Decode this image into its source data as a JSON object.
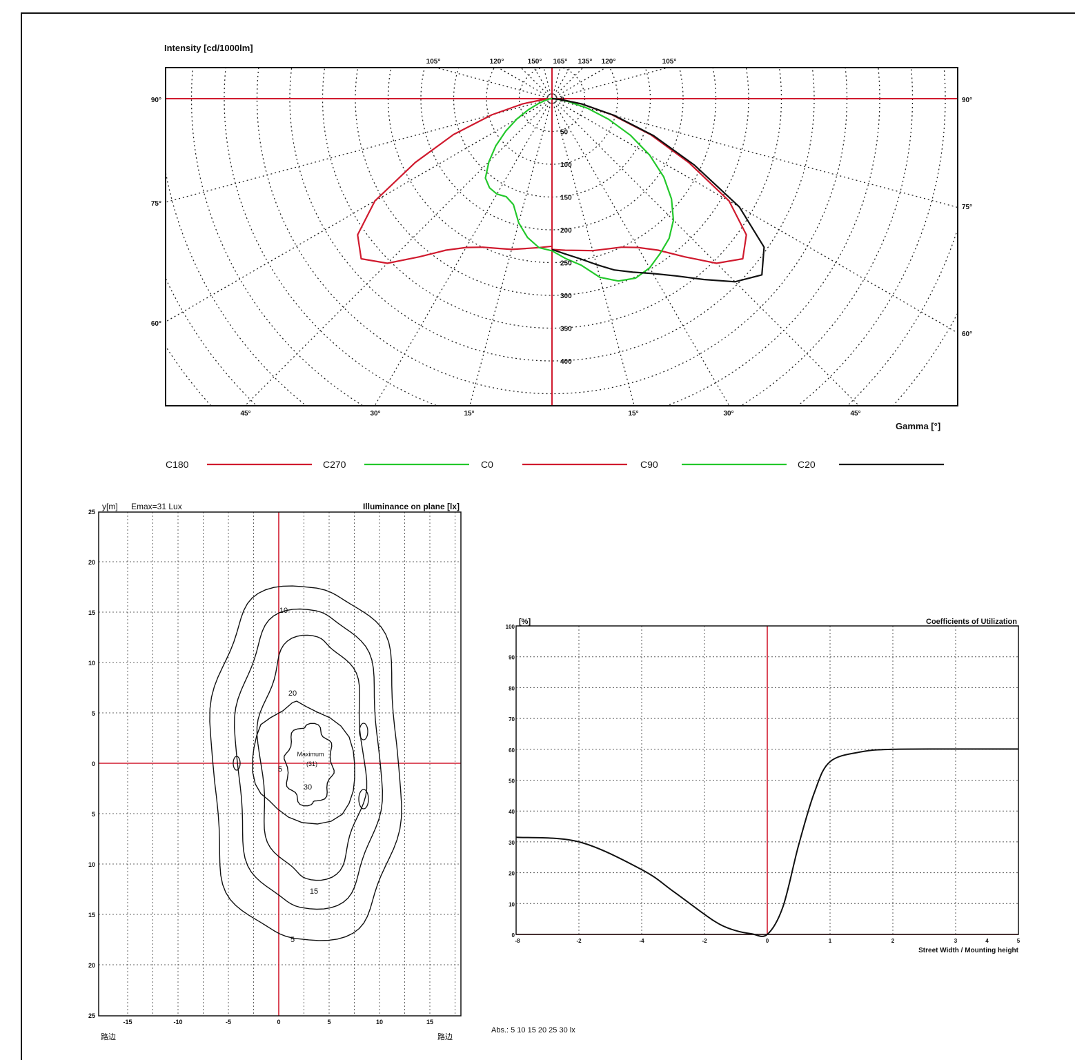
{
  "colors": {
    "red": "#d01a2e",
    "green": "#23c82b",
    "black": "#111111",
    "grid": "#222222",
    "background": "#ffffff"
  },
  "polar": {
    "title": "Intensity [cd/1000lm]",
    "gamma_label": "Gamma [°]",
    "top_labels": [
      "105°",
      "120°",
      "150°",
      "165°",
      "135°",
      "120°",
      "105°"
    ],
    "side_left": [
      "90°",
      "75°",
      "60°"
    ],
    "side_right": [
      "90°",
      "75°",
      "60°"
    ],
    "bottom_labels": [
      "45°",
      "30°",
      "15°",
      "15°",
      "30°",
      "45°"
    ],
    "radial_labels": [
      "0",
      "50",
      "100",
      "150",
      "200",
      "250",
      "300",
      "350",
      "400"
    ]
  },
  "legend": {
    "items": [
      {
        "label": "C180",
        "color": "#d01a2e"
      },
      {
        "label": "C270",
        "color": "#23c82b"
      },
      {
        "label": "C0",
        "color": "#d01a2e"
      },
      {
        "label": "C90",
        "color": "#23c82b"
      },
      {
        "label": "C20",
        "color": "#111111"
      }
    ]
  },
  "iso": {
    "ylabel": "y[m]",
    "emax": "Emax=31 Lux",
    "title": "Illuminance on plane [lx]",
    "y_ticks": [
      "25",
      "20",
      "15",
      "10",
      "5",
      "0",
      "5",
      "10",
      "15",
      "20",
      "25"
    ],
    "x_ticks": [
      "-15",
      "-10",
      "-5",
      "0",
      "5",
      "10",
      "15"
    ],
    "bottom_left": "路边",
    "bottom_right": "路边",
    "contour_labels": [
      "5",
      "10",
      "15",
      "20",
      "30",
      "5",
      "Maximum",
      "(31)"
    ],
    "abs_text": "Abs.: 5 10 15 20 25 30 lx"
  },
  "chart_data": [
    {
      "type": "line",
      "title": "Intensity [cd/1000lm]",
      "xlabel": "Gamma [°]",
      "rlim": [
        0,
        400
      ],
      "series": [
        {
          "name": "C0",
          "gamma": [
            0,
            5,
            10,
            15,
            20,
            25,
            30,
            35,
            40,
            45,
            50,
            55,
            60,
            65,
            70,
            75,
            80,
            85,
            90
          ],
          "values": [
            230,
            232,
            235,
            240,
            244,
            250,
            262,
            282,
            315,
            355,
            380,
            362,
            312,
            230,
            160,
            95,
            45,
            12,
            0
          ]
        },
        {
          "name": "C180",
          "gamma": [
            0,
            5,
            10,
            15,
            20,
            25,
            30,
            35,
            40,
            45,
            50,
            55,
            60,
            65,
            70,
            75,
            80,
            85,
            90
          ],
          "values": [
            225,
            228,
            232,
            238,
            243,
            250,
            262,
            282,
            315,
            355,
            380,
            362,
            312,
            230,
            160,
            95,
            45,
            12,
            0
          ]
        },
        {
          "name": "C270",
          "gamma": [
            0,
            5,
            10,
            15,
            20,
            25,
            30,
            35,
            40,
            45,
            50,
            55,
            60,
            65,
            70,
            75,
            80,
            85,
            90
          ],
          "values": [
            232,
            228,
            215,
            196,
            172,
            165,
            168,
            166,
            158,
            136,
            112,
            86,
            62,
            40,
            22,
            12,
            6,
            3,
            0
          ]
        },
        {
          "name": "C90",
          "gamma": [
            0,
            5,
            10,
            15,
            20,
            25,
            30,
            35,
            40,
            45,
            50,
            55,
            60,
            65,
            70,
            75,
            80,
            85,
            90
          ],
          "values": [
            232,
            245,
            258,
            282,
            296,
            302,
            298,
            288,
            278,
            262,
            238,
            208,
            172,
            132,
            92,
            56,
            26,
            8,
            0
          ]
        },
        {
          "name": "C20",
          "gamma": [
            0,
            5,
            10,
            15,
            20,
            25,
            30,
            35,
            40,
            45,
            50,
            55,
            60,
            65,
            70,
            75,
            80,
            85,
            90
          ],
          "values": [
            230,
            238,
            248,
            262,
            278,
            292,
            308,
            330,
            360,
            395,
            418,
            395,
            330,
            240,
            165,
            98,
            46,
            12,
            0
          ]
        }
      ]
    },
    {
      "type": "line",
      "title": "Coefficients of Utilization",
      "xlabel": "Street Width / Mounting height",
      "ylabel": "[%]",
      "xlim": [
        -8,
        8
      ],
      "ylim": [
        0,
        100
      ],
      "x_ticks": [
        "-8",
        "-2",
        "-4",
        "-2",
        "0",
        "1",
        "2",
        "3",
        "4",
        "5"
      ],
      "y_ticks": [
        "100",
        "90",
        "80",
        "70",
        "60",
        "50",
        "40",
        "30",
        "20",
        "10",
        "0"
      ],
      "grid": true,
      "series": [
        {
          "x": [
            -8,
            -6,
            -4,
            -3,
            -2,
            -1.5,
            -1,
            -0.5,
            0,
            0.5,
            1,
            1.5,
            2,
            3,
            4,
            6,
            8
          ],
          "y": [
            31.5,
            30,
            21,
            14,
            6.5,
            3.2,
            1.2,
            0.2,
            0,
            9,
            29,
            46,
            56,
            59.2,
            60,
            60.1,
            60.1
          ]
        }
      ]
    }
  ]
}
